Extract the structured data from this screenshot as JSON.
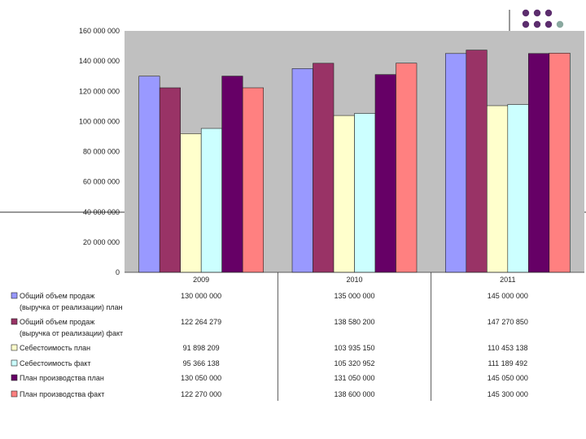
{
  "chart_data": {
    "type": "bar",
    "categories": [
      "2009",
      "2010",
      "2011"
    ],
    "ylim": [
      0,
      160000000
    ],
    "ytick_values": [
      0,
      20000000,
      40000000,
      60000000,
      80000000,
      100000000,
      120000000,
      140000000,
      160000000
    ],
    "ytick_labels": [
      "0",
      "20 000 000",
      "40 000 000",
      "60 000 000",
      "80 000 000",
      "100 000 000",
      "120 000 000",
      "140 000 000",
      "160 000 000"
    ],
    "plot_background": "#c0c0c0",
    "grid": false,
    "legend": "bottom data table",
    "series": [
      {
        "name": "Общий объем продаж (выручка от реализации) план",
        "legend_lines": [
          "Общий объем продаж",
          "(выручка от реализации) план"
        ],
        "color": "#9999ff",
        "values": [
          130000000,
          135000000,
          145000000
        ],
        "labels": [
          "130 000 000",
          "135 000 000",
          "145 000 000"
        ]
      },
      {
        "name": "Общий объем продаж (выручка от реализации) факт",
        "legend_lines": [
          "Общий объем продаж",
          "(выручка от реализации) факт"
        ],
        "color": "#993366",
        "values": [
          122264279,
          138580200,
          147270850
        ],
        "labels": [
          "122 264 279",
          "138 580 200",
          "147 270 850"
        ]
      },
      {
        "name": "Себестоимость план",
        "legend_lines": [
          "Себестоимость план"
        ],
        "color": "#ffffcc",
        "values": [
          91898209,
          103935150,
          110453138
        ],
        "labels": [
          "91 898 209",
          "103 935 150",
          "110 453 138"
        ]
      },
      {
        "name": "Себестоимость факт",
        "legend_lines": [
          "Себестоимость факт"
        ],
        "color": "#ccffff",
        "values": [
          95366138,
          105320952,
          111189492
        ],
        "labels": [
          "95 366 138",
          "105 320 952",
          "111 189 492"
        ]
      },
      {
        "name": "План производства план",
        "legend_lines": [
          "План производства план"
        ],
        "color": "#660066",
        "values": [
          130050000,
          131050000,
          145050000
        ],
        "labels": [
          "130 050 000",
          "131 050 000",
          "145 050 000"
        ]
      },
      {
        "name": "План производства факт",
        "legend_lines": [
          "План производства факт"
        ],
        "color": "#ff8080",
        "values": [
          122270000,
          138600000,
          145300000
        ],
        "labels": [
          "122 270 000",
          "138 600 000",
          "145 300 000"
        ]
      }
    ]
  },
  "decor": {
    "dot_colors": [
      "#5c2d6e",
      "#8aa9a0"
    ]
  }
}
